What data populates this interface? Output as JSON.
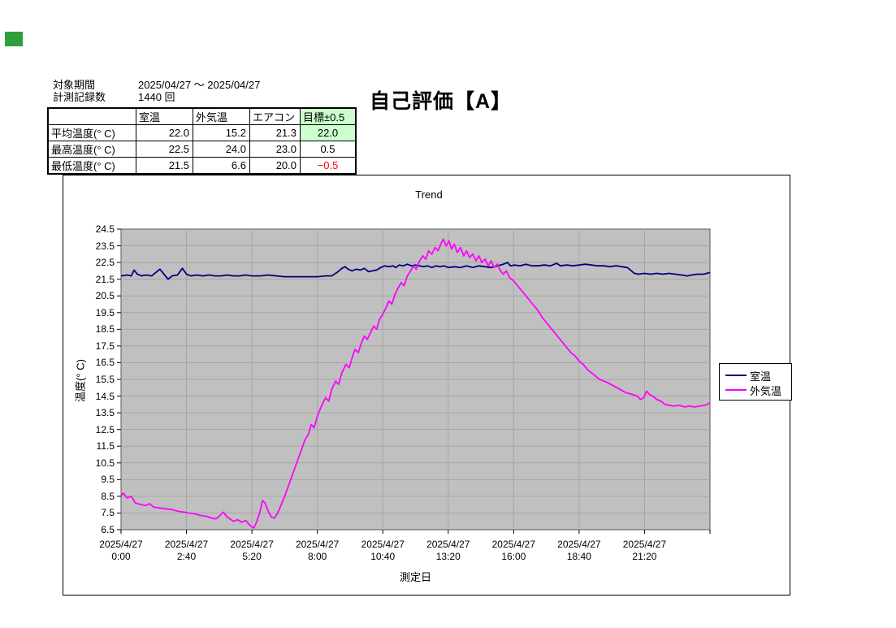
{
  "marker": {
    "color": "#2f9e3f"
  },
  "info": {
    "period_label": "対象期間",
    "period_value": "2025/04/27 ～ 2025/04/27",
    "count_label": "計測記録数",
    "count_value": "1440 回"
  },
  "evaluation_title": "自己評価【A】",
  "summary_table": {
    "columns": [
      "",
      "室温",
      "外気温",
      "エアコン",
      "目標±0.5"
    ],
    "rows": [
      {
        "label": "平均温度(° C)",
        "values": [
          "22.0",
          "15.2",
          "21.3",
          "22.0"
        ]
      },
      {
        "label": "最高温度(° C)",
        "values": [
          "22.5",
          "24.0",
          "23.0",
          "0.5"
        ]
      },
      {
        "label": "最低温度(° C)",
        "values": [
          "21.5",
          "6.6",
          "20.0",
          "−0.5"
        ]
      }
    ],
    "highlight_color": "#ccffcc",
    "negative_color": "#ff0000"
  },
  "chart_data": {
    "type": "line",
    "title": "Trend",
    "xlabel": "測定日",
    "ylabel": "温度(° C)",
    "ylim": [
      6.5,
      24.5
    ],
    "ytick_step": 1.0,
    "xlim_minutes": [
      0,
      1440
    ],
    "grid": true,
    "plot_bg": "#c0c0c0",
    "grid_color": "#a6a6a6",
    "axis_color": "#000000",
    "plot_border_color": "#58585a",
    "legend_position": "right",
    "tick_minutes": [
      0,
      160,
      320,
      480,
      640,
      800,
      960,
      1120,
      1280,
      1440
    ],
    "grid_minutes": [
      160,
      320,
      480,
      640,
      800,
      960,
      1120,
      1280
    ],
    "xticks": [
      {
        "minute": 0,
        "date": "2025/4/27",
        "time": "0:00"
      },
      {
        "minute": 160,
        "date": "2025/4/27",
        "time": "2:40"
      },
      {
        "minute": 320,
        "date": "2025/4/27",
        "time": "5:20"
      },
      {
        "minute": 480,
        "date": "2025/4/27",
        "time": "8:00"
      },
      {
        "minute": 640,
        "date": "2025/4/27",
        "time": "10:40"
      },
      {
        "minute": 800,
        "date": "2025/4/27",
        "time": "13:20"
      },
      {
        "minute": 960,
        "date": "2025/4/27",
        "time": "16:00"
      },
      {
        "minute": 1120,
        "date": "2025/4/27",
        "time": "18:40"
      },
      {
        "minute": 1280,
        "date": "2025/4/27",
        "time": "21:20"
      }
    ],
    "series": [
      {
        "name": "室温",
        "color": "#000080",
        "points": [
          [
            0,
            21.7
          ],
          [
            15,
            21.75
          ],
          [
            25,
            21.7
          ],
          [
            32,
            22.05
          ],
          [
            40,
            21.8
          ],
          [
            50,
            21.7
          ],
          [
            62,
            21.75
          ],
          [
            75,
            21.7
          ],
          [
            85,
            21.9
          ],
          [
            95,
            22.1
          ],
          [
            105,
            21.8
          ],
          [
            115,
            21.5
          ],
          [
            125,
            21.7
          ],
          [
            138,
            21.75
          ],
          [
            150,
            22.15
          ],
          [
            160,
            21.8
          ],
          [
            170,
            21.7
          ],
          [
            185,
            21.75
          ],
          [
            200,
            21.7
          ],
          [
            215,
            21.75
          ],
          [
            230,
            21.7
          ],
          [
            245,
            21.7
          ],
          [
            260,
            21.75
          ],
          [
            275,
            21.7
          ],
          [
            290,
            21.7
          ],
          [
            305,
            21.75
          ],
          [
            320,
            21.7
          ],
          [
            340,
            21.7
          ],
          [
            360,
            21.75
          ],
          [
            380,
            21.7
          ],
          [
            400,
            21.65
          ],
          [
            420,
            21.65
          ],
          [
            440,
            21.65
          ],
          [
            460,
            21.65
          ],
          [
            480,
            21.65
          ],
          [
            500,
            21.7
          ],
          [
            515,
            21.7
          ],
          [
            528,
            21.9
          ],
          [
            540,
            22.15
          ],
          [
            548,
            22.25
          ],
          [
            555,
            22.1
          ],
          [
            565,
            22.0
          ],
          [
            575,
            22.1
          ],
          [
            585,
            22.05
          ],
          [
            595,
            22.15
          ],
          [
            605,
            21.95
          ],
          [
            615,
            22.0
          ],
          [
            625,
            22.05
          ],
          [
            635,
            22.2
          ],
          [
            645,
            22.3
          ],
          [
            655,
            22.25
          ],
          [
            665,
            22.3
          ],
          [
            672,
            22.2
          ],
          [
            680,
            22.35
          ],
          [
            690,
            22.3
          ],
          [
            700,
            22.4
          ],
          [
            710,
            22.3
          ],
          [
            720,
            22.35
          ],
          [
            730,
            22.3
          ],
          [
            740,
            22.25
          ],
          [
            750,
            22.3
          ],
          [
            760,
            22.2
          ],
          [
            770,
            22.3
          ],
          [
            780,
            22.25
          ],
          [
            790,
            22.3
          ],
          [
            800,
            22.2
          ],
          [
            815,
            22.25
          ],
          [
            830,
            22.2
          ],
          [
            845,
            22.3
          ],
          [
            860,
            22.2
          ],
          [
            875,
            22.3
          ],
          [
            890,
            22.25
          ],
          [
            905,
            22.2
          ],
          [
            920,
            22.3
          ],
          [
            935,
            22.4
          ],
          [
            945,
            22.5
          ],
          [
            952,
            22.3
          ],
          [
            962,
            22.35
          ],
          [
            975,
            22.3
          ],
          [
            990,
            22.4
          ],
          [
            1005,
            22.3
          ],
          [
            1020,
            22.3
          ],
          [
            1035,
            22.35
          ],
          [
            1050,
            22.3
          ],
          [
            1065,
            22.45
          ],
          [
            1075,
            22.3
          ],
          [
            1090,
            22.35
          ],
          [
            1105,
            22.3
          ],
          [
            1120,
            22.35
          ],
          [
            1135,
            22.4
          ],
          [
            1150,
            22.35
          ],
          [
            1165,
            22.3
          ],
          [
            1180,
            22.3
          ],
          [
            1195,
            22.25
          ],
          [
            1210,
            22.3
          ],
          [
            1225,
            22.25
          ],
          [
            1238,
            22.2
          ],
          [
            1248,
            22.0
          ],
          [
            1255,
            21.85
          ],
          [
            1265,
            21.8
          ],
          [
            1280,
            21.85
          ],
          [
            1295,
            21.8
          ],
          [
            1310,
            21.85
          ],
          [
            1325,
            21.8
          ],
          [
            1340,
            21.85
          ],
          [
            1355,
            21.8
          ],
          [
            1370,
            21.75
          ],
          [
            1385,
            21.7
          ],
          [
            1395,
            21.75
          ],
          [
            1410,
            21.8
          ],
          [
            1425,
            21.8
          ],
          [
            1440,
            21.9
          ]
        ]
      },
      {
        "name": "外気温",
        "color": "#ff00ff",
        "points": [
          [
            0,
            8.5
          ],
          [
            5,
            8.7
          ],
          [
            15,
            8.4
          ],
          [
            25,
            8.5
          ],
          [
            35,
            8.1
          ],
          [
            50,
            8.0
          ],
          [
            60,
            7.95
          ],
          [
            70,
            8.05
          ],
          [
            80,
            7.85
          ],
          [
            95,
            7.8
          ],
          [
            110,
            7.75
          ],
          [
            125,
            7.7
          ],
          [
            140,
            7.6
          ],
          [
            155,
            7.55
          ],
          [
            165,
            7.5
          ],
          [
            180,
            7.45
          ],
          [
            195,
            7.35
          ],
          [
            210,
            7.3
          ],
          [
            220,
            7.2
          ],
          [
            232,
            7.15
          ],
          [
            240,
            7.3
          ],
          [
            250,
            7.55
          ],
          [
            258,
            7.3
          ],
          [
            266,
            7.15
          ],
          [
            275,
            7.0
          ],
          [
            285,
            7.1
          ],
          [
            295,
            6.95
          ],
          [
            305,
            7.05
          ],
          [
            312,
            6.85
          ],
          [
            318,
            6.7
          ],
          [
            325,
            6.6
          ],
          [
            332,
            7.0
          ],
          [
            340,
            7.6
          ],
          [
            346,
            8.25
          ],
          [
            352,
            8.1
          ],
          [
            360,
            7.6
          ],
          [
            368,
            7.25
          ],
          [
            375,
            7.2
          ],
          [
            382,
            7.45
          ],
          [
            390,
            7.9
          ],
          [
            400,
            8.5
          ],
          [
            412,
            9.3
          ],
          [
            425,
            10.2
          ],
          [
            437,
            11.0
          ],
          [
            450,
            11.9
          ],
          [
            458,
            12.2
          ],
          [
            465,
            12.8
          ],
          [
            472,
            12.6
          ],
          [
            480,
            13.3
          ],
          [
            490,
            13.9
          ],
          [
            500,
            14.4
          ],
          [
            508,
            14.2
          ],
          [
            515,
            14.9
          ],
          [
            525,
            15.4
          ],
          [
            532,
            15.2
          ],
          [
            540,
            15.9
          ],
          [
            550,
            16.4
          ],
          [
            558,
            16.2
          ],
          [
            565,
            16.8
          ],
          [
            572,
            17.3
          ],
          [
            580,
            17.1
          ],
          [
            588,
            17.7
          ],
          [
            595,
            18.1
          ],
          [
            602,
            17.9
          ],
          [
            610,
            18.3
          ],
          [
            618,
            18.7
          ],
          [
            625,
            18.5
          ],
          [
            632,
            19.1
          ],
          [
            640,
            19.4
          ],
          [
            648,
            19.8
          ],
          [
            655,
            20.2
          ],
          [
            662,
            20.0
          ],
          [
            670,
            20.6
          ],
          [
            678,
            21.0
          ],
          [
            685,
            21.3
          ],
          [
            692,
            21.1
          ],
          [
            700,
            21.7
          ],
          [
            708,
            22.0
          ],
          [
            715,
            22.3
          ],
          [
            722,
            22.1
          ],
          [
            730,
            22.6
          ],
          [
            738,
            22.9
          ],
          [
            745,
            22.7
          ],
          [
            752,
            23.2
          ],
          [
            760,
            23.0
          ],
          [
            768,
            23.4
          ],
          [
            775,
            23.2
          ],
          [
            782,
            23.6
          ],
          [
            788,
            23.9
          ],
          [
            795,
            23.5
          ],
          [
            802,
            23.8
          ],
          [
            808,
            23.3
          ],
          [
            815,
            23.6
          ],
          [
            822,
            23.1
          ],
          [
            830,
            23.4
          ],
          [
            838,
            22.9
          ],
          [
            845,
            23.2
          ],
          [
            852,
            22.8
          ],
          [
            860,
            23.0
          ],
          [
            868,
            22.6
          ],
          [
            875,
            22.9
          ],
          [
            882,
            22.5
          ],
          [
            890,
            22.7
          ],
          [
            898,
            22.3
          ],
          [
            905,
            22.6
          ],
          [
            912,
            22.2
          ],
          [
            920,
            22.4
          ],
          [
            928,
            22.0
          ],
          [
            935,
            21.8
          ],
          [
            942,
            22.0
          ],
          [
            950,
            21.6
          ],
          [
            960,
            21.4
          ],
          [
            970,
            21.1
          ],
          [
            980,
            20.8
          ],
          [
            990,
            20.5
          ],
          [
            1000,
            20.2
          ],
          [
            1010,
            19.9
          ],
          [
            1020,
            19.6
          ],
          [
            1030,
            19.2
          ],
          [
            1040,
            18.9
          ],
          [
            1050,
            18.6
          ],
          [
            1060,
            18.3
          ],
          [
            1070,
            18.0
          ],
          [
            1080,
            17.7
          ],
          [
            1090,
            17.4
          ],
          [
            1100,
            17.1
          ],
          [
            1110,
            16.9
          ],
          [
            1120,
            16.6
          ],
          [
            1130,
            16.4
          ],
          [
            1140,
            16.1
          ],
          [
            1150,
            15.9
          ],
          [
            1160,
            15.7
          ],
          [
            1170,
            15.5
          ],
          [
            1180,
            15.4
          ],
          [
            1190,
            15.3
          ],
          [
            1205,
            15.1
          ],
          [
            1220,
            14.9
          ],
          [
            1235,
            14.7
          ],
          [
            1250,
            14.6
          ],
          [
            1262,
            14.5
          ],
          [
            1270,
            14.3
          ],
          [
            1278,
            14.4
          ],
          [
            1285,
            14.8
          ],
          [
            1292,
            14.6
          ],
          [
            1300,
            14.5
          ],
          [
            1310,
            14.3
          ],
          [
            1320,
            14.2
          ],
          [
            1330,
            14.0
          ],
          [
            1340,
            13.95
          ],
          [
            1352,
            13.9
          ],
          [
            1365,
            13.95
          ],
          [
            1378,
            13.85
          ],
          [
            1390,
            13.9
          ],
          [
            1402,
            13.85
          ],
          [
            1415,
            13.9
          ],
          [
            1428,
            13.95
          ],
          [
            1440,
            14.1
          ]
        ]
      }
    ]
  }
}
